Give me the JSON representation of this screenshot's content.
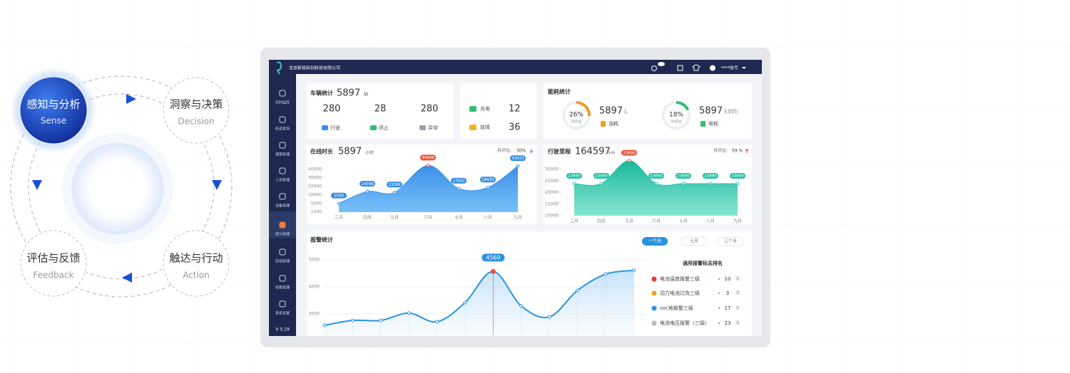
{
  "cycle": {
    "steps": [
      {
        "title": "感知与分析",
        "subtitle": "Sense"
      },
      {
        "title": "洞察与决策",
        "subtitle": "Decision"
      },
      {
        "title": "触达与行动",
        "subtitle": "Action"
      },
      {
        "title": "评估与反馈",
        "subtitle": "Feedback"
      }
    ]
  },
  "dashboard": {
    "company": "北京新锐科创科技有限公司",
    "account": "****账号",
    "menu": [
      "实时监控",
      "轨迹查询",
      "报警管理",
      "人员管理",
      "设备管理",
      "统计管理",
      "区域管理",
      "权限管理",
      "系统设置"
    ],
    "version": "V 5.19",
    "vehicle": {
      "title": "车辆统计",
      "total": 5897,
      "unit": "辆",
      "items": [
        {
          "value": 280,
          "label": "行驶",
          "color": "#3a8ee6"
        },
        {
          "value": 28,
          "label": "停止",
          "color": "#2fbf71"
        },
        {
          "value": 280,
          "label": "异常",
          "color": "#9aa3b2"
        }
      ]
    },
    "charge": [
      {
        "label": "充电",
        "value": 12,
        "color": "#2fbf71"
      },
      {
        "label": "故障",
        "value": 36,
        "color": "#f3b324"
      }
    ],
    "energy": {
      "title": "能耗统计",
      "items": [
        {
          "ratio": {
            "value": 26,
            "label": "26%"
          },
          "caption": "月环比",
          "value": 5897,
          "unit": "L",
          "label": "油耗",
          "color": "#f39c24"
        },
        {
          "ratio": {
            "value": 18,
            "label": "18%"
          },
          "caption": "月环比",
          "value": 5897,
          "unit": "kWh",
          "label": "电耗",
          "color": "#2fbf71"
        }
      ]
    },
    "online": {
      "title": "在线时长",
      "total": 5897,
      "unit": "小时",
      "mom_label": "月环比:",
      "mom": "30%",
      "categories": [
        "三月",
        "四月",
        "五月",
        "六月",
        "七月",
        "八月",
        "九月"
      ],
      "values": [
        5098,
        14098,
        13098,
        44698,
        17602,
        18933,
        43933
      ],
      "ylim": [
        1000,
        45000
      ],
      "yticks": [
        1000,
        5000,
        10000,
        20000,
        30000,
        40000
      ],
      "color": "#3a8ee6"
    },
    "mileage": {
      "title": "行驶里程",
      "total": 164597,
      "unit": "km",
      "unit_cn": "公里",
      "mom_label": "月环比:",
      "mom": "59 %",
      "categories": [
        "三月",
        "四月",
        "五月",
        "六月",
        "七月",
        "八月",
        "九月"
      ],
      "values": [
        23890,
        23890,
        33890,
        23890,
        23890,
        23890,
        23890
      ],
      "ylim": [
        10000,
        35000
      ],
      "yticks": [
        10000,
        15000,
        20000,
        25000,
        30000
      ],
      "color": "#23c4a8"
    },
    "alarm": {
      "title": "报警统计",
      "tabs": [
        "一个月",
        "七天",
        "三个月"
      ],
      "values": [
        2580,
        2760,
        2760,
        3030,
        2710,
        3420,
        4569,
        3290,
        2890,
        3870,
        4470,
        4610
      ],
      "highlight": 6,
      "ylim": [
        2200,
        5100
      ],
      "yticks": [
        3000,
        4000,
        5000
      ],
      "color": "#2a93e0",
      "ranking": {
        "title": "通用报警标志排名",
        "unit": "次",
        "items": [
          {
            "name": "电池温度报警三级",
            "count": 10,
            "color": "#e53935"
          },
          {
            "name": "动力电池过充三级",
            "count": 3,
            "color": "#f39c24"
          },
          {
            "name": "soc地报警三级",
            "count": 17,
            "color": "#2a93e0"
          },
          {
            "name": "电池电压报警（三级）",
            "count": 23,
            "color": "#b8bcc4"
          }
        ]
      }
    }
  }
}
